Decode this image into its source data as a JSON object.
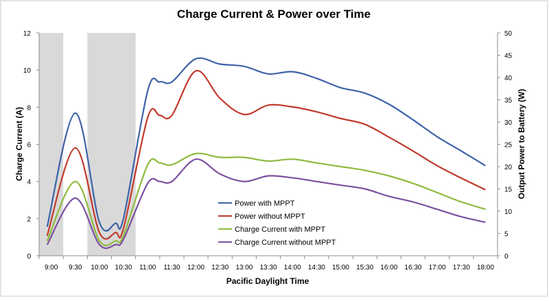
{
  "chart_data": {
    "type": "line",
    "title": "Charge Current & Power over Time",
    "xlabel": "Pacific Daylight Time",
    "ylabel_left": "Charge Current (A)",
    "ylabel_right": "Output Power to Battery (W)",
    "ylim_left": [
      0,
      12
    ],
    "yticks_left": [
      "0",
      "2",
      "4",
      "6",
      "8",
      "10",
      "12"
    ],
    "ylim_right": [
      0,
      50
    ],
    "yticks_right": [
      "0",
      "5",
      "10",
      "15",
      "20",
      "25",
      "30",
      "35",
      "40",
      "45",
      "50"
    ],
    "categories": [
      "9:00",
      "9:30",
      "10:00",
      "10:30",
      "11:00",
      "11:30",
      "12:00",
      "12:30",
      "13:00",
      "13:30",
      "14:00",
      "14:30",
      "15:00",
      "15:30",
      "16:00",
      "16:30",
      "17:00",
      "17:30",
      "18:00"
    ],
    "shaded_regions": [
      [
        "9:00",
        "9:15"
      ],
      [
        "9:45",
        "10:45"
      ]
    ],
    "legend_position": "center",
    "colors": {
      "power_mppt": "#3c62a8",
      "power_no_mppt": "#c0392b",
      "current_mppt": "#8dba3c",
      "current_no_mppt": "#7b4f9e",
      "shade": "#d9d9d9",
      "axis": "#8c8c8c"
    },
    "series": [
      {
        "name": "Power with MPPT",
        "axis": "right",
        "x": [
          "8:55",
          "9:30",
          "10:00",
          "10:20",
          "10:30",
          "11:00",
          "11:15",
          "11:30",
          "12:00",
          "12:30",
          "13:00",
          "13:30",
          "14:00",
          "14:30",
          "15:00",
          "15:30",
          "16:00",
          "16:30",
          "17:00",
          "17:30",
          "18:00"
        ],
        "values": [
          6.5,
          32,
          7.5,
          7.3,
          8.5,
          37,
          39,
          39,
          44.2,
          43,
          42.5,
          40.8,
          41.3,
          39.8,
          37.7,
          36.5,
          34,
          30.5,
          26.7,
          23.5,
          20.2
        ]
      },
      {
        "name": "Power without MPPT",
        "axis": "right",
        "x": [
          "8:55",
          "9:30",
          "10:00",
          "10:20",
          "10:30",
          "11:00",
          "11:15",
          "11:30",
          "12:00",
          "12:30",
          "13:00",
          "13:30",
          "14:00",
          "14:30",
          "15:00",
          "15:30",
          "16:00",
          "16:30",
          "17:00",
          "17:30",
          "18:00"
        ],
        "values": [
          4.5,
          24.2,
          5.2,
          5.2,
          6.2,
          31,
          31.5,
          31.5,
          41.5,
          35.3,
          31.7,
          33.8,
          33.4,
          32.3,
          30.8,
          29.5,
          26.6,
          23.5,
          20.2,
          17.4,
          14.8
        ]
      },
      {
        "name": "Charge Current with MPPT",
        "axis": "left",
        "x": [
          "8:55",
          "9:30",
          "10:00",
          "10:20",
          "10:30",
          "11:00",
          "11:15",
          "11:30",
          "12:00",
          "12:30",
          "13:00",
          "13:30",
          "14:00",
          "14:30",
          "15:00",
          "15:30",
          "16:00",
          "16:30",
          "17:00",
          "17:30",
          "18:00"
        ],
        "values": [
          0.8,
          4.0,
          0.8,
          0.8,
          1.1,
          4.9,
          5.0,
          4.9,
          5.5,
          5.3,
          5.3,
          5.1,
          5.2,
          5.0,
          4.8,
          4.6,
          4.3,
          3.9,
          3.4,
          2.9,
          2.5
        ]
      },
      {
        "name": "Charge Current without MPPT",
        "axis": "left",
        "x": [
          "8:55",
          "9:30",
          "10:00",
          "10:20",
          "10:30",
          "11:00",
          "11:15",
          "11:30",
          "12:00",
          "12:30",
          "13:00",
          "13:30",
          "14:00",
          "14:30",
          "15:00",
          "15:30",
          "16:00",
          "16:30",
          "17:00",
          "17:30",
          "18:00"
        ],
        "values": [
          0.6,
          3.1,
          0.6,
          0.6,
          0.9,
          3.9,
          4.0,
          4.0,
          5.2,
          4.4,
          4.0,
          4.3,
          4.2,
          4.0,
          3.8,
          3.6,
          3.2,
          2.9,
          2.5,
          2.1,
          1.8
        ]
      }
    ]
  }
}
